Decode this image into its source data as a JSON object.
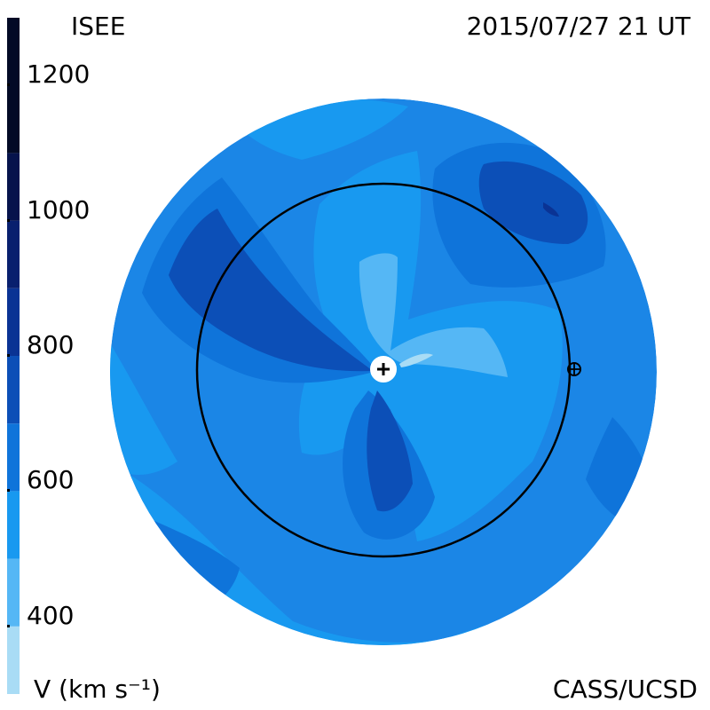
{
  "header": {
    "organization": "ISEE",
    "timestamp": "2015/07/27 21 UT"
  },
  "footer": {
    "credit": "CASS/UCSD",
    "unit_label": "V (km s⁻¹)"
  },
  "colorbar": {
    "ticks": [
      "1200",
      "1000",
      "800",
      "600",
      "400"
    ],
    "tick_values": [
      1200,
      1000,
      800,
      600,
      400
    ],
    "range": [
      300,
      1300
    ],
    "bands": [
      {
        "from": 300,
        "to": 400,
        "color": "#a9dcf5"
      },
      {
        "from": 400,
        "to": 500,
        "color": "#55b7f5"
      },
      {
        "from": 500,
        "to": 600,
        "color": "#1899f0"
      },
      {
        "from": 600,
        "to": 700,
        "color": "#0f74da"
      },
      {
        "from": 700,
        "to": 800,
        "color": "#0c4fb7"
      },
      {
        "from": 800,
        "to": 900,
        "color": "#0a3394"
      },
      {
        "from": 900,
        "to": 1000,
        "color": "#081f6e"
      },
      {
        "from": 1000,
        "to": 1100,
        "color": "#06134c"
      },
      {
        "from": 1100,
        "to": 1300,
        "color": "#030a26"
      }
    ]
  },
  "colors": {
    "background": "#ffffff",
    "disk_base": "#1b86e6",
    "orbit": "#000000"
  },
  "markers": {
    "sun_icon": "sun-plus-icon",
    "earth_icon": "earth-circle-plus-icon"
  }
}
